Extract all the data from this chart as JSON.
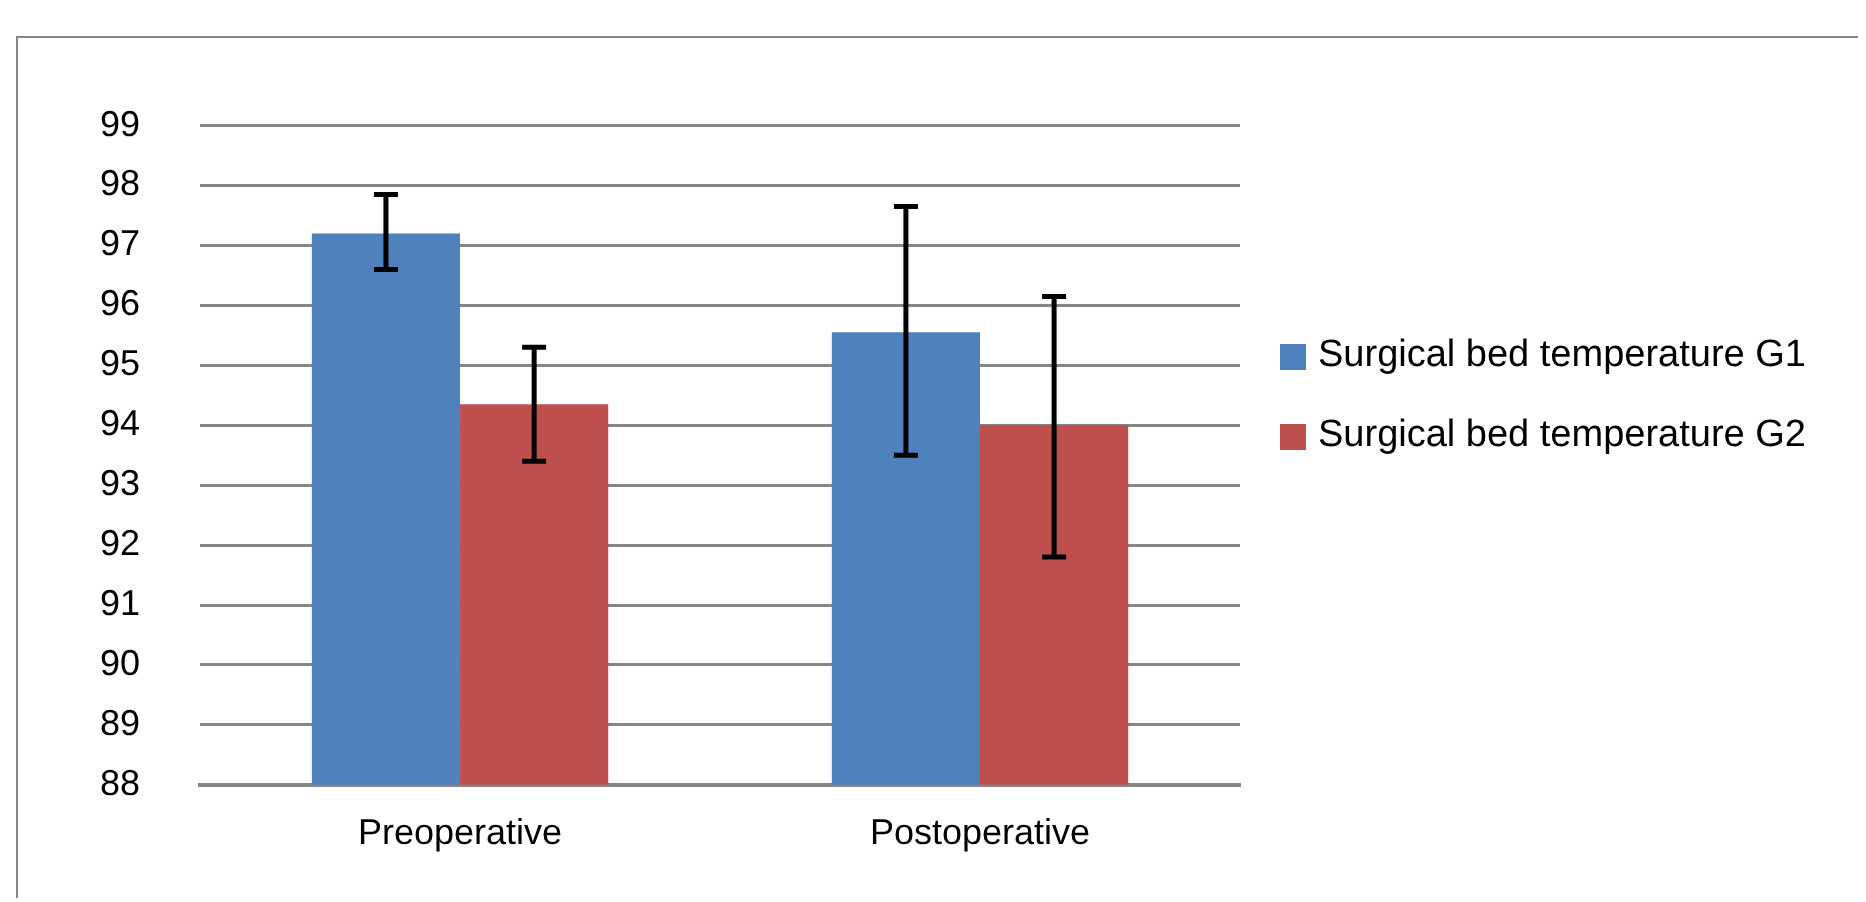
{
  "chart_data": {
    "type": "bar",
    "categories": [
      "Preoperative",
      "Postoperative"
    ],
    "series": [
      {
        "name": "Surgical bed temperature G1",
        "color": "#4f81bd",
        "values": [
          97.2,
          95.55
        ],
        "errors": [
          [
            96.6,
            97.85
          ],
          [
            93.5,
            97.65
          ]
        ]
      },
      {
        "name": "Surgical bed temperature G2",
        "color": "#c0504d",
        "values": [
          94.35,
          94.0
        ],
        "errors": [
          [
            93.4,
            95.3
          ],
          [
            91.8,
            96.15
          ]
        ]
      }
    ],
    "ylim": [
      88,
      99
    ],
    "yticks": [
      88,
      89,
      90,
      91,
      92,
      93,
      94,
      95,
      96,
      97,
      98,
      99
    ],
    "grid": "y",
    "legend": "right"
  }
}
